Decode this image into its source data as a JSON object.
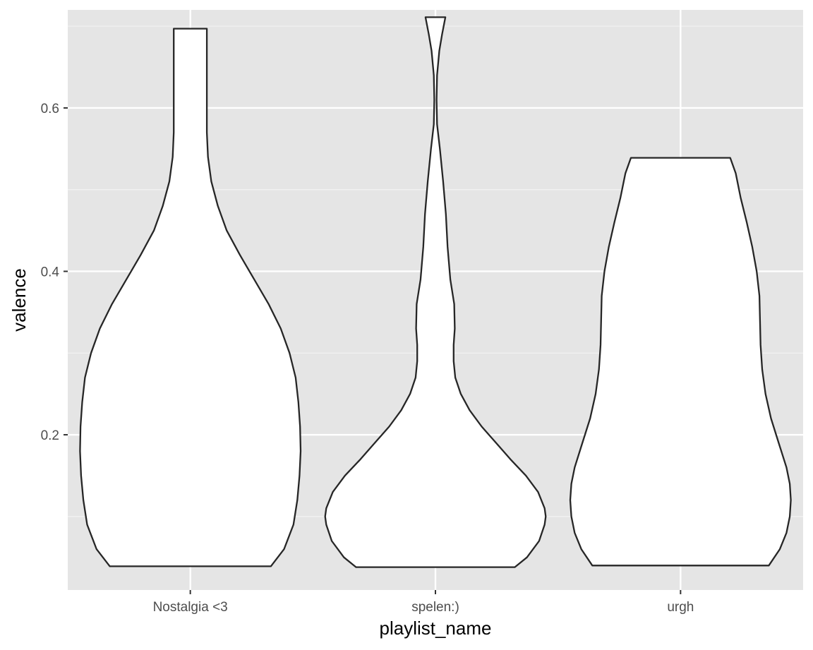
{
  "chart_data": {
    "type": "violin",
    "title": "",
    "xlabel": "playlist_name",
    "ylabel": "valence",
    "categories": [
      "Nostalgia <3",
      "spelen:)",
      "urgh"
    ],
    "ylim": [
      0.01,
      0.72
    ],
    "y_ticks": [
      0.2,
      0.4,
      0.6
    ],
    "y_tick_labels": [
      "0.2",
      "0.4",
      "0.6"
    ],
    "y_minor_ticks": [
      0.1,
      0.3,
      0.5,
      0.7
    ],
    "grid": true,
    "background": "#e5e5e5",
    "violin_fill": "#ffffff",
    "violin_stroke": "#262626",
    "violins": [
      {
        "category": "Nostalgia <3",
        "min": 0.039,
        "max": 0.697,
        "profile": [
          [
            0.039,
            0.73
          ],
          [
            0.06,
            0.85
          ],
          [
            0.09,
            0.935
          ],
          [
            0.12,
            0.97
          ],
          [
            0.15,
            0.99
          ],
          [
            0.18,
            1.0
          ],
          [
            0.21,
            0.995
          ],
          [
            0.24,
            0.98
          ],
          [
            0.27,
            0.955
          ],
          [
            0.3,
            0.9
          ],
          [
            0.33,
            0.82
          ],
          [
            0.36,
            0.71
          ],
          [
            0.39,
            0.58
          ],
          [
            0.42,
            0.45
          ],
          [
            0.45,
            0.33
          ],
          [
            0.48,
            0.25
          ],
          [
            0.51,
            0.19
          ],
          [
            0.54,
            0.16
          ],
          [
            0.57,
            0.15
          ],
          [
            0.6,
            0.15
          ],
          [
            0.65,
            0.15
          ],
          [
            0.697,
            0.15
          ]
        ]
      },
      {
        "category": "spelen:)",
        "min": 0.038,
        "max": 0.711,
        "profile": [
          [
            0.038,
            0.72
          ],
          [
            0.05,
            0.83
          ],
          [
            0.07,
            0.94
          ],
          [
            0.09,
            0.99
          ],
          [
            0.1,
            1.0
          ],
          [
            0.11,
            0.99
          ],
          [
            0.13,
            0.93
          ],
          [
            0.15,
            0.82
          ],
          [
            0.17,
            0.68
          ],
          [
            0.19,
            0.55
          ],
          [
            0.21,
            0.42
          ],
          [
            0.23,
            0.31
          ],
          [
            0.25,
            0.23
          ],
          [
            0.27,
            0.18
          ],
          [
            0.29,
            0.165
          ],
          [
            0.31,
            0.165
          ],
          [
            0.33,
            0.175
          ],
          [
            0.36,
            0.17
          ],
          [
            0.39,
            0.135
          ],
          [
            0.43,
            0.11
          ],
          [
            0.47,
            0.095
          ],
          [
            0.51,
            0.07
          ],
          [
            0.55,
            0.04
          ],
          [
            0.58,
            0.015
          ],
          [
            0.61,
            0.01
          ],
          [
            0.64,
            0.015
          ],
          [
            0.67,
            0.035
          ],
          [
            0.69,
            0.06
          ],
          [
            0.711,
            0.09
          ]
        ]
      },
      {
        "category": "urgh",
        "min": 0.04,
        "max": 0.539,
        "profile": [
          [
            0.04,
            0.8
          ],
          [
            0.06,
            0.9
          ],
          [
            0.08,
            0.96
          ],
          [
            0.1,
            0.99
          ],
          [
            0.12,
            1.0
          ],
          [
            0.14,
            0.99
          ],
          [
            0.16,
            0.96
          ],
          [
            0.19,
            0.89
          ],
          [
            0.22,
            0.82
          ],
          [
            0.25,
            0.77
          ],
          [
            0.28,
            0.74
          ],
          [
            0.31,
            0.725
          ],
          [
            0.34,
            0.72
          ],
          [
            0.37,
            0.715
          ],
          [
            0.4,
            0.69
          ],
          [
            0.43,
            0.65
          ],
          [
            0.46,
            0.6
          ],
          [
            0.49,
            0.545
          ],
          [
            0.52,
            0.5
          ],
          [
            0.539,
            0.45
          ]
        ]
      }
    ]
  }
}
